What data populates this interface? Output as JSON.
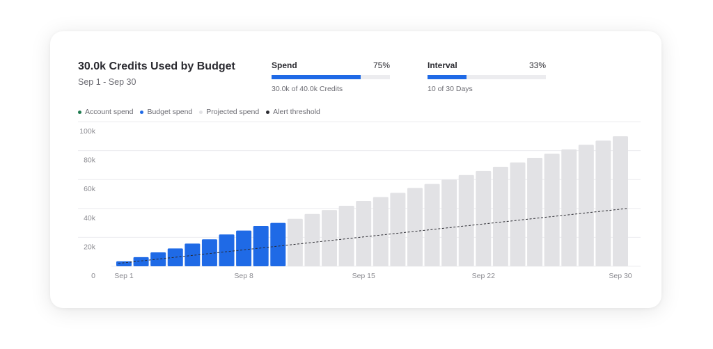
{
  "header": {
    "title": "30.0k Credits Used by Budget",
    "date_range": "Sep 1 - Sep 30"
  },
  "metrics": [
    {
      "label": "Spend",
      "percent_text": "75%",
      "fraction": 0.75,
      "note": "30.0k of 40.0k Credits"
    },
    {
      "label": "Interval",
      "percent_text": "33%",
      "fraction": 0.33,
      "note": "10 of 30 Days"
    }
  ],
  "legend": [
    {
      "label": "Account spend",
      "color": "#1e7a4f"
    },
    {
      "label": "Budget spend",
      "color": "#1f6ae6"
    },
    {
      "label": "Projected spend",
      "color": "#e2e2e5"
    },
    {
      "label": "Alert threshold",
      "color": "#2a2a30"
    }
  ],
  "chart_data": {
    "type": "bar",
    "title": "30.0k Credits Used by Budget",
    "x": [
      "Sep 1",
      "Sep 2",
      "Sep 3",
      "Sep 4",
      "Sep 5",
      "Sep 6",
      "Sep 7",
      "Sep 8",
      "Sep 9",
      "Sep 10",
      "Sep 11",
      "Sep 12",
      "Sep 13",
      "Sep 14",
      "Sep 15",
      "Sep 16",
      "Sep 17",
      "Sep 18",
      "Sep 19",
      "Sep 20",
      "Sep 21",
      "Sep 22",
      "Sep 23",
      "Sep 24",
      "Sep 25",
      "Sep 26",
      "Sep 27",
      "Sep 28",
      "Sep 29",
      "Sep 30"
    ],
    "series": [
      {
        "name": "Budget spend",
        "type": "bar",
        "color": "#1f6ae6",
        "values": [
          3400,
          6300,
          9600,
          12300,
          15700,
          18600,
          22000,
          24700,
          27900,
          30000,
          null,
          null,
          null,
          null,
          null,
          null,
          null,
          null,
          null,
          null,
          null,
          null,
          null,
          null,
          null,
          null,
          null,
          null,
          null,
          null
        ]
      },
      {
        "name": "Projected spend",
        "type": "bar",
        "color": "#e2e2e5",
        "values": [
          null,
          null,
          null,
          null,
          null,
          null,
          null,
          null,
          null,
          null,
          32800,
          36200,
          38900,
          41800,
          45200,
          47900,
          50800,
          54200,
          56900,
          59900,
          63100,
          65900,
          68800,
          71800,
          75000,
          77900,
          80800,
          84000,
          86900,
          89900
        ]
      },
      {
        "name": "Alert threshold",
        "type": "line",
        "style": "dashed",
        "color": "#2a2a30",
        "values_endpoints": {
          "Sep 1": 2000,
          "Sep 30": 40000
        }
      }
    ],
    "x_ticks": [
      "Sep 1",
      "Sep 8",
      "Sep 15",
      "Sep 22",
      "Sep 30"
    ],
    "y_ticks": [
      "0",
      "20k",
      "40k",
      "60k",
      "80k",
      "100k"
    ],
    "y_tick_values": [
      0,
      20000,
      40000,
      60000,
      80000,
      100000
    ],
    "ylim": [
      0,
      100000
    ],
    "grid": true,
    "legend_position": "top-left"
  }
}
